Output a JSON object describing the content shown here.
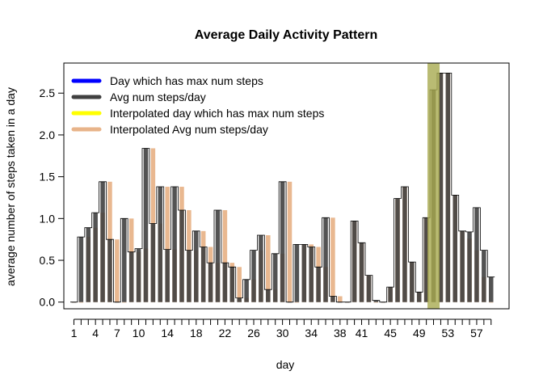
{
  "chart_data": {
    "type": "bar",
    "title": "Average Daily Activity Pattern",
    "xlabel": "day",
    "ylabel": "average number of steps taken in a day",
    "xlim": [
      -0.4,
      61.5
    ],
    "ylim": [
      -0.08,
      2.86
    ],
    "y_ticks": [
      0.0,
      0.5,
      1.0,
      1.5,
      2.0,
      2.5
    ],
    "y_tick_labels": [
      "0.0",
      "0.5",
      "1.0",
      "1.5",
      "2.0",
      "2.5"
    ],
    "x_tick_labels": [
      "1",
      "4",
      "7",
      "10",
      "14",
      "18",
      "22",
      "26",
      "30",
      "34",
      "38",
      "41",
      "45",
      "49",
      "53",
      "57"
    ],
    "x_tick_count": 59,
    "legend_position": "top-left",
    "legend": [
      {
        "label": "Day which has max num steps",
        "color": "#0000ff"
      },
      {
        "label": "Avg num steps/day",
        "color": "#404040"
      },
      {
        "label": "Interpolated day which has max num steps",
        "color": "#ffff00"
      },
      {
        "label": "Interpolated Avg num steps/day",
        "color": "#e8b48a"
      }
    ],
    "colors": {
      "avg": "#404040",
      "interp": "#e8b48a",
      "highlight": "#a8aa50"
    },
    "highlight_day": 51,
    "avg_values": [
      0.0,
      0.78,
      0.89,
      1.07,
      1.44,
      0.75,
      0.0,
      1.0,
      0.6,
      0.64,
      1.84,
      0.94,
      1.38,
      0.63,
      1.38,
      1.1,
      0.62,
      0.85,
      0.66,
      0.47,
      1.1,
      0.47,
      0.42,
      0.05,
      0.27,
      0.62,
      0.8,
      0.15,
      0.58,
      1.44,
      0.0,
      0.69,
      0.69,
      0.66,
      0.42,
      1.01,
      0.07,
      0.0,
      0.0,
      0.97,
      0.71,
      0.32,
      0.02,
      0.0,
      0.18,
      1.24,
      1.38,
      0.48,
      0.12,
      1.01,
      2.54,
      2.74,
      2.74,
      1.28,
      0.85,
      0.84,
      1.13,
      0.62,
      0.3
    ],
    "interp_values": [
      0.0,
      0.0,
      0.78,
      0.89,
      1.07,
      1.44,
      0.75,
      0.0,
      1.0,
      0.6,
      0.64,
      1.84,
      0.94,
      1.38,
      0.63,
      1.38,
      1.1,
      0.62,
      0.85,
      0.66,
      0.47,
      1.1,
      0.47,
      0.42,
      0.05,
      0.27,
      0.62,
      0.8,
      0.15,
      0.58,
      1.44,
      0.0,
      0.69,
      0.69,
      0.66,
      0.42,
      1.01,
      0.07,
      0.0,
      0.97,
      0.71,
      0.32,
      0.0,
      0.0,
      0.18,
      1.24,
      1.38,
      0.48,
      0.12,
      1.01,
      2.54,
      2.74,
      2.74,
      1.28,
      0.85,
      0.76,
      0.62,
      0.3,
      0.0
    ]
  }
}
